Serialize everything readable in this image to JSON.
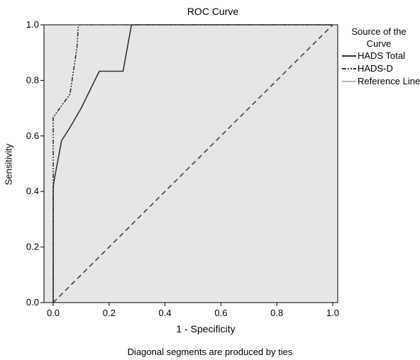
{
  "chart_data": {
    "type": "line",
    "title": "ROC Curve",
    "xlabel": "1 - Specificity",
    "ylabel": "Sensitivity",
    "xlim": [
      0.0,
      1.0
    ],
    "ylim": [
      0.0,
      1.0
    ],
    "xticks": [
      "0.0",
      "0.2",
      "0.4",
      "0.6",
      "0.8",
      "1.0"
    ],
    "yticks": [
      "0.0",
      "0.2",
      "0.4",
      "0.6",
      "0.8",
      "1.0"
    ],
    "grid": false,
    "legend_title": "Source of the Curve",
    "legend_position": "right",
    "footnote": "Diagonal segments are produced by ties",
    "series": [
      {
        "name": "HADS Total",
        "style": "solid",
        "color": "#333333",
        "x": [
          0.0,
          0.0,
          0.005,
          0.03,
          0.06,
          0.1,
          0.165,
          0.25,
          0.28,
          1.0
        ],
        "y": [
          0.0,
          0.417,
          0.45,
          0.583,
          0.63,
          0.7,
          0.833,
          0.833,
          1.0,
          1.0
        ]
      },
      {
        "name": "HADS-D",
        "style": "dash-dot-dot",
        "color": "#333333",
        "x": [
          0.0,
          0.0,
          0.0,
          0.06,
          0.085,
          0.085,
          0.09,
          1.0
        ],
        "y": [
          0.0,
          0.5,
          0.667,
          0.75,
          0.917,
          0.917,
          1.0,
          1.0
        ]
      },
      {
        "name": "Reference Line",
        "style": "dashed",
        "color": "#444444",
        "legend_color": "#bbbbbb",
        "x": [
          0.0,
          1.0
        ],
        "y": [
          0.0,
          1.0
        ]
      }
    ]
  },
  "colors": {
    "plot_background": "#e6e6e6",
    "axis": "#000000"
  }
}
